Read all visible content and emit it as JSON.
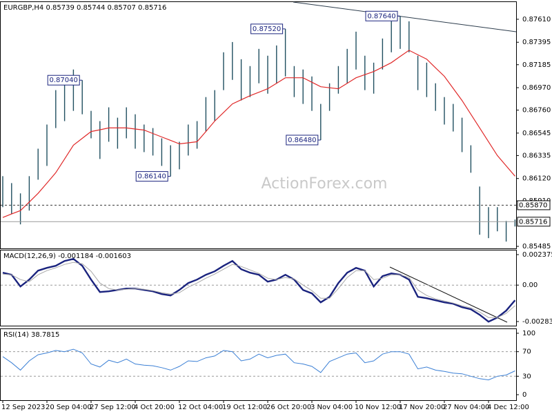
{
  "chart_data": [
    {
      "type": "hilo",
      "title": "EURGBP,H4 0.85739 0.85744 0.85707 0.85716",
      "watermark": "ActionForex.com",
      "color": "#1f4e5f",
      "categories": [
        "12 Sep 2023",
        null,
        null,
        null,
        null,
        "20 Sep 04:00",
        null,
        null,
        null,
        null,
        "27 Sep 12:00",
        null,
        null,
        null,
        null,
        "4 Oct 20:00",
        null,
        null,
        null,
        null,
        "12 Oct 04:00",
        null,
        null,
        null,
        null,
        "19 Oct 12:00",
        null,
        null,
        null,
        null,
        "26 Oct 20:00",
        null,
        null,
        null,
        null,
        "3 Nov 04:00",
        null,
        null,
        null,
        null,
        "10 Nov 12:00",
        null,
        null,
        null,
        null,
        "17 Nov 20:00",
        null,
        null,
        null,
        null,
        "27 Nov 04:00",
        null,
        null,
        null,
        null,
        "4 Dec 12:00",
        null,
        null,
        null
      ],
      "high": [
        0.86142,
        0.86077,
        0.85981,
        0.86142,
        0.86399,
        0.86625,
        0.86947,
        0.87011,
        0.8714,
        0.8704,
        0.86753,
        0.86657,
        0.86786,
        0.86689,
        0.86786,
        0.86721,
        0.86625,
        0.86592,
        0.86496,
        0.86431,
        0.86464,
        0.86625,
        0.86657,
        0.86882,
        0.86947,
        0.87301,
        0.87397,
        0.87236,
        0.87172,
        0.87333,
        0.87269,
        0.87365,
        0.8752,
        0.87172,
        0.8714,
        0.87075,
        0.86818,
        0.87011,
        0.87172,
        0.87333,
        0.87494,
        0.87269,
        0.87204,
        0.8743,
        0.87591,
        0.8764,
        0.87591,
        0.87269,
        0.87204,
        0.87011,
        0.86882,
        0.86818,
        0.86689,
        0.86431,
        0.86045,
        0.85852,
        0.85852,
        0.85723,
        0.85736
      ],
      "low": [
        0.85852,
        0.85787,
        0.85691,
        0.8582,
        0.86109,
        0.86238,
        0.86592,
        0.86657,
        0.86753,
        0.86721,
        0.86496,
        0.86303,
        0.86464,
        0.86399,
        0.86496,
        0.86399,
        0.86367,
        0.86335,
        0.86238,
        0.8614,
        0.86206,
        0.86335,
        0.86399,
        0.8656,
        0.86657,
        0.86947,
        0.87043,
        0.8685,
        0.86882,
        0.87011,
        0.86914,
        0.87011,
        0.87075,
        0.86882,
        0.86818,
        0.86753,
        0.8648,
        0.86753,
        0.86914,
        0.87011,
        0.8714,
        0.86947,
        0.86914,
        0.8714,
        0.87301,
        0.87333,
        0.87301,
        0.86947,
        0.86882,
        0.86753,
        0.86625,
        0.8656,
        0.86367,
        0.86174,
        0.85594,
        0.85562,
        0.85626,
        0.8553,
        0.85671
      ],
      "ma": {
        "color": "#e02828",
        "values": [
          0.85755,
          0.85788,
          0.8582,
          0.859,
          0.85981,
          0.86077,
          0.86174,
          0.86303,
          0.86432,
          0.86496,
          0.8656,
          0.86576,
          0.86593,
          0.86593,
          0.86593,
          0.86583,
          0.86573,
          0.86541,
          0.86509,
          0.86477,
          0.86444,
          0.86454,
          0.86464,
          0.8656,
          0.86657,
          0.86737,
          0.86818,
          0.86857,
          0.86895,
          0.86927,
          0.8696,
          0.87011,
          0.87063,
          0.87063,
          0.87063,
          0.87021,
          0.86979,
          0.86969,
          0.8696,
          0.87011,
          0.87063,
          0.87092,
          0.87121,
          0.87162,
          0.87204,
          0.87262,
          0.8732,
          0.87278,
          0.87237,
          0.87156,
          0.87076,
          0.86963,
          0.8685,
          0.86721,
          0.86593,
          0.86464,
          0.86335,
          0.86238,
          0.86142
        ]
      },
      "annotations": [
        {
          "value": 0.8704,
          "label": "0.87040"
        },
        {
          "value": 0.8752,
          "label": "0.87520"
        },
        {
          "value": 0.8764,
          "label": "0.87640"
        },
        {
          "value": 0.8648,
          "label": "0.86480"
        },
        {
          "value": 0.8614,
          "label": "0.86140"
        }
      ],
      "hlines": [
        {
          "value": 0.8587,
          "label": "0.85870",
          "style": "dashed"
        },
        {
          "value": 0.85716,
          "label": "0.85716",
          "style": "solid"
        }
      ],
      "ylim": [
        0.85466,
        0.87771
      ],
      "yticks": [
        {
          "value": 0.8761,
          "label": "0.87610"
        },
        0.87395,
        0.87185,
        {
          "value": 0.8697,
          "label": "0.86970"
        },
        {
          "value": 0.8676,
          "label": "0.86760"
        },
        0.86545,
        0.86335,
        {
          "value": 0.8612,
          "label": "0.86120"
        },
        {
          "value": 0.8591,
          "label": "0.85910"
        },
        0.85485
      ]
    },
    {
      "type": "macd",
      "title": "MACD(12,26,9) -0.001184 -0.001603",
      "series": [
        {
          "color": "#1a237e",
          "values": [
            0.000967,
            0.000806,
            -0.000107,
            0.00043,
            0.001128,
            0.001343,
            0.001504,
            0.00188,
            0.002041,
            0.001504,
            0.00043,
            -0.000537,
            -0.000483,
            -0.000376,
            -0.000269,
            -0.000269,
            -0.000376,
            -0.000483,
            -0.000698,
            -0.000806,
            -0.000376,
            0.000161,
            0.00043,
            0.000806,
            0.001074,
            0.001504,
            0.00188,
            0.001235,
            0.000967,
            0.000806,
            0.000269,
            0.00043,
            0.000806,
            0.00043,
            -0.000376,
            -0.000644,
            -0.001343,
            -0.000913,
            0.000161,
            0.000967,
            0.001343,
            0.001128,
            -0.000107,
            0.000698,
            0.000913,
            0.000806,
            0.00043,
            -0.000913,
            -0.00102,
            -0.001181,
            -0.001343,
            -0.00145,
            -0.001718,
            -0.00188,
            -0.002309,
            -0.002846,
            -0.002524,
            -0.001987,
            -0.001184
          ]
        },
        {
          "color": "#a8a8a8",
          "values": [
            0.000859,
            0.000806,
            0.00043,
            0.000269,
            0.000806,
            0.001128,
            0.001343,
            0.001611,
            0.001772,
            0.001665,
            0.001074,
            0.000161,
            -0.000269,
            -0.000376,
            -0.000322,
            -0.000269,
            -0.000322,
            -0.00043,
            -0.000591,
            -0.000698,
            -0.000591,
            -0.000161,
            0.000161,
            0.000537,
            0.000859,
            0.001235,
            0.001611,
            0.00145,
            0.001181,
            0.000913,
            0.000537,
            0.00043,
            0.000591,
            0.000483,
            0,
            -0.00043,
            -0.00102,
            -0.00102,
            -0.000269,
            0.000591,
            0.001128,
            0.001128,
            0.00043,
            0.000537,
            0.000806,
            0.000806,
            0.000591,
            -0.000376,
            -0.000806,
            -0.001074,
            -0.001235,
            -0.001396,
            -0.001611,
            -0.001772,
            -0.002094,
            -0.002524,
            -0.002524,
            -0.002202,
            -0.001603
          ]
        }
      ],
      "levels": [
        0
      ],
      "ylim": [
        -0.00316,
        0.002697
      ],
      "yticks": [
        0.002375,
        {
          "value": 0,
          "label": "0.00"
        },
        -0.002838
      ]
    },
    {
      "type": "line",
      "title": "RSI(14) 38.7815",
      "color": "#3a7fd5",
      "values": [
        62,
        52,
        40,
        55,
        65,
        68,
        72,
        70,
        74,
        68,
        50,
        45,
        56,
        52,
        58,
        50,
        48,
        47,
        44,
        40,
        46,
        55,
        54,
        60,
        63,
        72,
        70,
        55,
        58,
        66,
        60,
        64,
        66,
        52,
        50,
        46,
        36,
        54,
        60,
        66,
        68,
        52,
        55,
        66,
        70,
        70,
        66,
        42,
        45,
        40,
        38,
        35,
        34,
        30,
        26,
        24,
        30,
        32,
        38.7815
      ],
      "levels": [
        70,
        30
      ],
      "ylim": [
        -9,
        106.7
      ],
      "yticks": [
        100,
        70,
        30,
        0
      ]
    }
  ]
}
